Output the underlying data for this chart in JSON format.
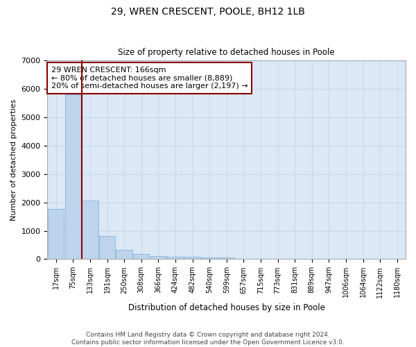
{
  "title1": "29, WREN CRESCENT, POOLE, BH12 1LB",
  "title2": "Size of property relative to detached houses in Poole",
  "xlabel": "Distribution of detached houses by size in Poole",
  "ylabel": "Number of detached properties",
  "bar_color": "#bdd4ec",
  "bar_edge_color": "#7aaad4",
  "grid_color": "#c8d8e8",
  "background_color": "#dce8f5",
  "categories": [
    "17sqm",
    "75sqm",
    "133sqm",
    "191sqm",
    "250sqm",
    "308sqm",
    "366sqm",
    "424sqm",
    "482sqm",
    "540sqm",
    "599sqm",
    "657sqm",
    "715sqm",
    "773sqm",
    "831sqm",
    "889sqm",
    "947sqm",
    "1006sqm",
    "1064sqm",
    "1122sqm",
    "1180sqm"
  ],
  "values": [
    1780,
    5800,
    2060,
    820,
    340,
    185,
    115,
    95,
    85,
    55,
    60,
    0,
    0,
    0,
    0,
    0,
    0,
    0,
    0,
    0,
    0
  ],
  "vline_x": 1.5,
  "vline_color": "#8b0000",
  "annotation_text": "29 WREN CRESCENT: 166sqm\n← 80% of detached houses are smaller (8,889)\n20% of semi-detached houses are larger (2,197) →",
  "annotation_box_color": "#8b0000",
  "ylim": [
    0,
    7000
  ],
  "yticks": [
    0,
    1000,
    2000,
    3000,
    4000,
    5000,
    6000,
    7000
  ],
  "footer_line1": "Contains HM Land Registry data © Crown copyright and database right 2024.",
  "footer_line2": "Contains public sector information licensed under the Open Government Licence v3.0."
}
